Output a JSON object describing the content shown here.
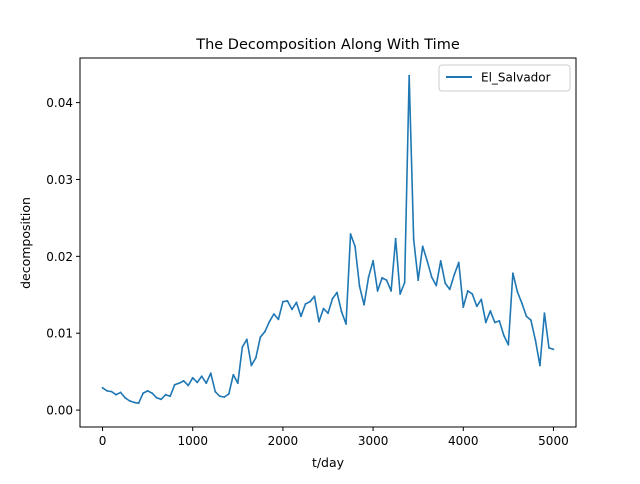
{
  "chart_data": {
    "type": "line",
    "title": "The Decomposition Along With Time",
    "xlabel": "t/day",
    "ylabel": "decomposition",
    "xlim": [
      -250,
      5250
    ],
    "ylim": [
      -0.0022,
      0.0458
    ],
    "xticks": [
      0,
      1000,
      2000,
      3000,
      4000,
      5000
    ],
    "xtick_labels": [
      "0",
      "1000",
      "2000",
      "3000",
      "4000",
      "5000"
    ],
    "yticks": [
      0.0,
      0.01,
      0.02,
      0.03,
      0.04
    ],
    "ytick_labels": [
      "0.00",
      "0.01",
      "0.02",
      "0.03",
      "0.04"
    ],
    "grid": false,
    "legend_position": "top-right",
    "series": [
      {
        "name": "El_Salvador",
        "color": "#1f77b4",
        "x": [
          0,
          50,
          100,
          150,
          200,
          250,
          300,
          350,
          400,
          450,
          500,
          550,
          600,
          650,
          700,
          750,
          800,
          850,
          900,
          950,
          1000,
          1050,
          1100,
          1150,
          1200,
          1250,
          1300,
          1350,
          1400,
          1450,
          1500,
          1550,
          1600,
          1650,
          1700,
          1750,
          1800,
          1850,
          1900,
          1950,
          2000,
          2050,
          2100,
          2150,
          2200,
          2250,
          2300,
          2350,
          2400,
          2450,
          2500,
          2550,
          2600,
          2650,
          2700,
          2750,
          2800,
          2850,
          2900,
          2950,
          3000,
          3050,
          3100,
          3150,
          3200,
          3250,
          3300,
          3350,
          3400,
          3450,
          3500,
          3550,
          3600,
          3650,
          3700,
          3750,
          3800,
          3850,
          3900,
          3950,
          4000,
          4050,
          4100,
          4150,
          4200,
          4250,
          4300,
          4350,
          4400,
          4450,
          4500,
          4550,
          4600,
          4650,
          4700,
          4750,
          4800,
          4850,
          4900,
          4950,
          5000
        ],
        "y": [
          0.0029,
          0.0025,
          0.0024,
          0.002,
          0.0023,
          0.0016,
          0.0012,
          0.001,
          0.0009,
          0.0022,
          0.0025,
          0.0022,
          0.0016,
          0.0014,
          0.002,
          0.0018,
          0.0033,
          0.0035,
          0.0038,
          0.0032,
          0.0042,
          0.0036,
          0.0044,
          0.0035,
          0.0048,
          0.0024,
          0.0018,
          0.0017,
          0.0021,
          0.0046,
          0.0035,
          0.0082,
          0.0092,
          0.0058,
          0.0068,
          0.0095,
          0.0102,
          0.0115,
          0.0125,
          0.0118,
          0.0141,
          0.0142,
          0.0131,
          0.014,
          0.0122,
          0.0138,
          0.0141,
          0.0148,
          0.0115,
          0.0132,
          0.0126,
          0.0145,
          0.0153,
          0.0128,
          0.0112,
          0.0229,
          0.0213,
          0.0161,
          0.0137,
          0.0173,
          0.0194,
          0.0155,
          0.0172,
          0.0169,
          0.0155,
          0.0223,
          0.0151,
          0.0166,
          0.0435,
          0.0222,
          0.0169,
          0.0213,
          0.0194,
          0.0173,
          0.0162,
          0.0194,
          0.0165,
          0.0157,
          0.0176,
          0.0192,
          0.0134,
          0.0155,
          0.0151,
          0.0135,
          0.0144,
          0.0114,
          0.0129,
          0.0114,
          0.0116,
          0.0097,
          0.0085,
          0.0178,
          0.0154,
          0.0139,
          0.0122,
          0.0117,
          0.0091,
          0.0058,
          0.0126,
          0.0081,
          0.0079
        ]
      }
    ]
  }
}
